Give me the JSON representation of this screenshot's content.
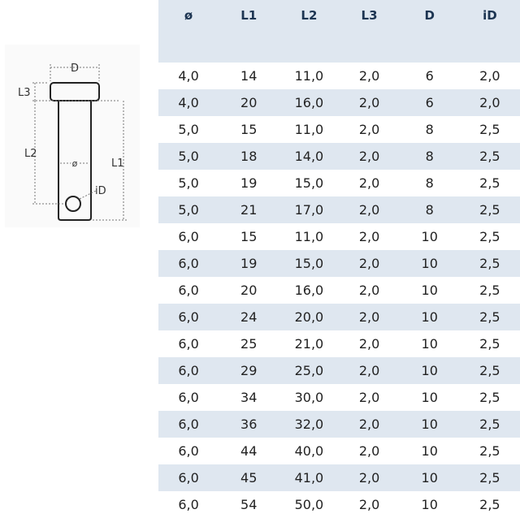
{
  "drawing": {
    "labels": {
      "d": "D",
      "l3": "L3",
      "l2": "L2",
      "l1": "L1",
      "dia": "ø",
      "id": "iD"
    }
  },
  "table": {
    "headers": [
      "ø",
      "L1",
      "L2",
      "L3",
      "D",
      "iD"
    ],
    "rows": [
      [
        "4,0",
        "14",
        "11,0",
        "2,0",
        "6",
        "2,0"
      ],
      [
        "4,0",
        "20",
        "16,0",
        "2,0",
        "6",
        "2,0"
      ],
      [
        "5,0",
        "15",
        "11,0",
        "2,0",
        "8",
        "2,5"
      ],
      [
        "5,0",
        "18",
        "14,0",
        "2,0",
        "8",
        "2,5"
      ],
      [
        "5,0",
        "19",
        "15,0",
        "2,0",
        "8",
        "2,5"
      ],
      [
        "5,0",
        "21",
        "17,0",
        "2,0",
        "8",
        "2,5"
      ],
      [
        "6,0",
        "15",
        "11,0",
        "2,0",
        "10",
        "2,5"
      ],
      [
        "6,0",
        "19",
        "15,0",
        "2,0",
        "10",
        "2,5"
      ],
      [
        "6,0",
        "20",
        "16,0",
        "2,0",
        "10",
        "2,5"
      ],
      [
        "6,0",
        "24",
        "20,0",
        "2,0",
        "10",
        "2,5"
      ],
      [
        "6,0",
        "25",
        "21,0",
        "2,0",
        "10",
        "2,5"
      ],
      [
        "6,0",
        "29",
        "25,0",
        "2,0",
        "10",
        "2,5"
      ],
      [
        "6,0",
        "34",
        "30,0",
        "2,0",
        "10",
        "2,5"
      ],
      [
        "6,0",
        "36",
        "32,0",
        "2,0",
        "10",
        "2,5"
      ],
      [
        "6,0",
        "44",
        "40,0",
        "2,0",
        "10",
        "2,5"
      ],
      [
        "6,0",
        "45",
        "41,0",
        "2,0",
        "10",
        "2,5"
      ],
      [
        "6,0",
        "54",
        "50,0",
        "2,0",
        "10",
        "2,5"
      ]
    ]
  },
  "colors": {
    "header_bg": "#dfe7f0",
    "header_text": "#1d3552",
    "stripe": "#dfe7f0"
  }
}
